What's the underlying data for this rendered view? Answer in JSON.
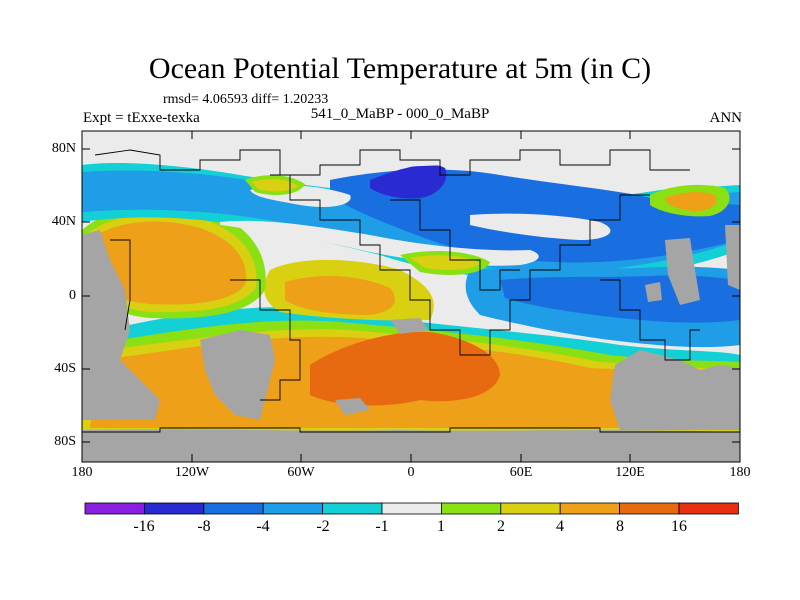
{
  "header": {
    "title": "Ocean Potential Temperature at 5m (in C)",
    "stats": "rmsd= 4.06593 diff= 1.20233",
    "experiment": "Expt = tExxe-texka",
    "case_id": "541_0_MaBP - 000_0_MaBP",
    "season": "ANN"
  },
  "axes": {
    "lat_labels": [
      "80N",
      "40N",
      "0",
      "40S",
      "80S"
    ],
    "lon_labels": [
      "180",
      "120W",
      "60W",
      "0",
      "60E",
      "120E",
      "180"
    ]
  },
  "colorbar": {
    "labels": [
      "-16",
      "-8",
      "-4",
      "-2",
      "-1",
      "1",
      "2",
      "4",
      "8",
      "16"
    ],
    "colors": [
      "#8a1fe0",
      "#2a2ad2",
      "#1a6fe0",
      "#1f9de6",
      "#12d0d6",
      "#ebebeb",
      "#8ae012",
      "#d8d010",
      "#eda018",
      "#e86a10",
      "#e83010"
    ]
  },
  "map_colors": {
    "land": "#a5a5a5",
    "neutral": "#ebebeb",
    "deep_blue": "#2a2ad2",
    "blue": "#1a6fe0",
    "light_blue": "#1f9de6",
    "cyan": "#12d0d6",
    "green": "#8ae012",
    "yellow": "#d8d010",
    "orange": "#eda018",
    "dark_orange": "#e86a10"
  }
}
